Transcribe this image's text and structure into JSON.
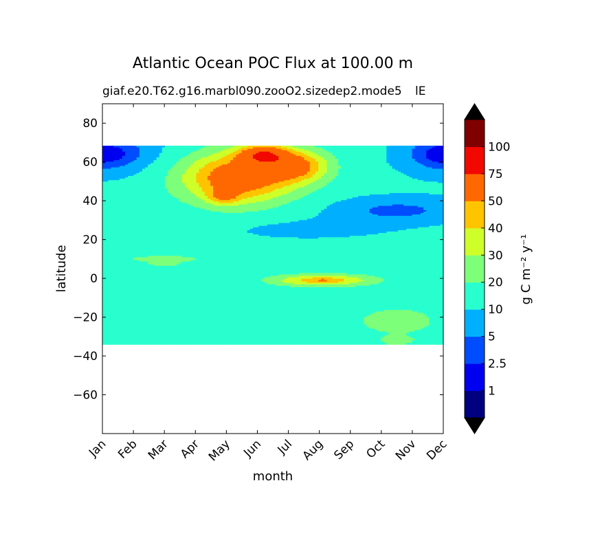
{
  "chart_data": {
    "type": "filled-contour",
    "title": "Atlantic Ocean POC Flux at 100.00 m",
    "subtitle": "giaf.e20.T62.g16.marbl090.zooO2.sizedep2.mode5",
    "subtitle_overlap": "lE",
    "xlabel": "month",
    "ylabel": "latitude",
    "x_ticks": [
      "Jan",
      "Feb",
      "Mar",
      "Apr",
      "May",
      "Jun",
      "Jul",
      "Aug",
      "Sep",
      "Oct",
      "Nov",
      "Dec"
    ],
    "x_range": [
      0,
      11
    ],
    "y_ticks": [
      80,
      60,
      40,
      20,
      0,
      -20,
      -40,
      -60
    ],
    "y_tick_labels": [
      "80",
      "60",
      "40",
      "20",
      "0",
      "−20",
      "−40",
      "−60"
    ],
    "ylim": [
      -80,
      90
    ],
    "data_lat_range": [
      -34,
      69
    ],
    "colorbar": {
      "label": "g C m⁻² y⁻¹",
      "levels": [
        0,
        1,
        2.5,
        5,
        10,
        20,
        30,
        40,
        50,
        75,
        100,
        125
      ],
      "tick_labels": [
        "1",
        "2.5",
        "5",
        "10",
        "20",
        "30",
        "40",
        "50",
        "75",
        "100"
      ],
      "colors": [
        "#000080",
        "#0000f1",
        "#004cff",
        "#00b0ff",
        "#29ffce",
        "#7dff7a",
        "#ceff29",
        "#ffc400",
        "#ff6800",
        "#f10800",
        "#800000"
      ],
      "over_color": "#000000",
      "under_color": "#000000"
    }
  }
}
